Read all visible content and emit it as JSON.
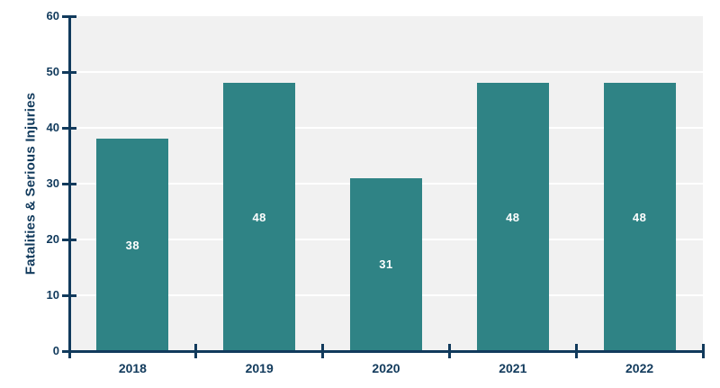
{
  "chart_data": {
    "type": "bar",
    "title": "",
    "categories": [
      "2018",
      "2019",
      "2020",
      "2021",
      "2022"
    ],
    "values": [
      38,
      48,
      31,
      48,
      48
    ],
    "bar_labels": [
      "38",
      "48",
      "31",
      "48",
      "48"
    ],
    "xlabel": "",
    "ylabel": "Fatalities & Serious Injuries",
    "ylim": [
      0,
      60
    ],
    "yticks": [
      0,
      10,
      20,
      30,
      40,
      50,
      60
    ],
    "grid": "horizontal white gridlines every 10",
    "legend": "none"
  },
  "colors": {
    "bar": "#2f8385",
    "axis": "#113a5c",
    "text": "#113a5c",
    "bar_label_text": "#ffffff",
    "plot_background": "#f1f1f1",
    "gridline": "#ffffff",
    "page_background": "#ffffff"
  }
}
